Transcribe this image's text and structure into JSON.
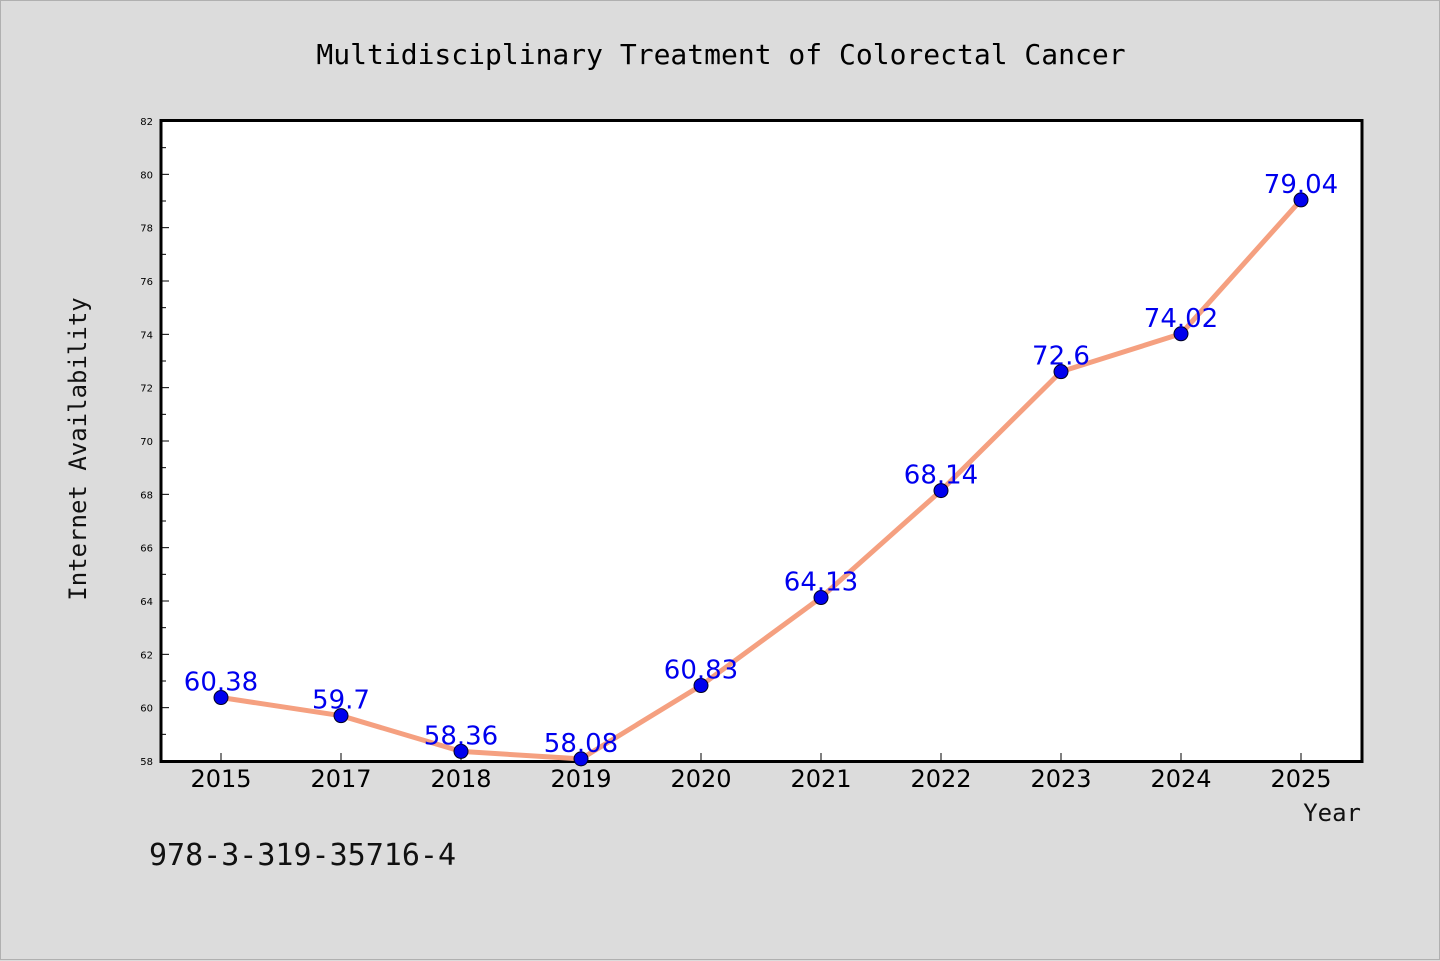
{
  "chart_data": {
    "type": "line",
    "title": "Multidisciplinary Treatment of Colorectal Cancer",
    "xlabel": "Year",
    "ylabel": "Internet Availability",
    "categories": [
      "2015",
      "2017",
      "2018",
      "2019",
      "2020",
      "2021",
      "2022",
      "2023",
      "2024",
      "2025"
    ],
    "series": [
      {
        "values": [
          60.38,
          59.7,
          58.36,
          58.08,
          60.83,
          64.13,
          68.14,
          72.6,
          74.02,
          79.04
        ],
        "data_labels": [
          "60.38",
          "59.7",
          "58.36",
          "58.08",
          "60.83",
          "64.13",
          "68.14",
          "72.6",
          "74.02",
          "79.04"
        ],
        "line_color": "#f5a080",
        "marker_color": "#0000ee",
        "label_color": "#0000ee"
      }
    ],
    "ylim": [
      58,
      82
    ],
    "yticks": [
      58,
      60,
      62,
      64,
      66,
      68,
      70,
      72,
      74,
      76,
      78,
      80,
      82
    ],
    "grid": false,
    "legend": "none",
    "plot_background": "#ffffff",
    "figure_background": "#dcdcdc"
  },
  "footnote": "978-3-319-35716-4"
}
